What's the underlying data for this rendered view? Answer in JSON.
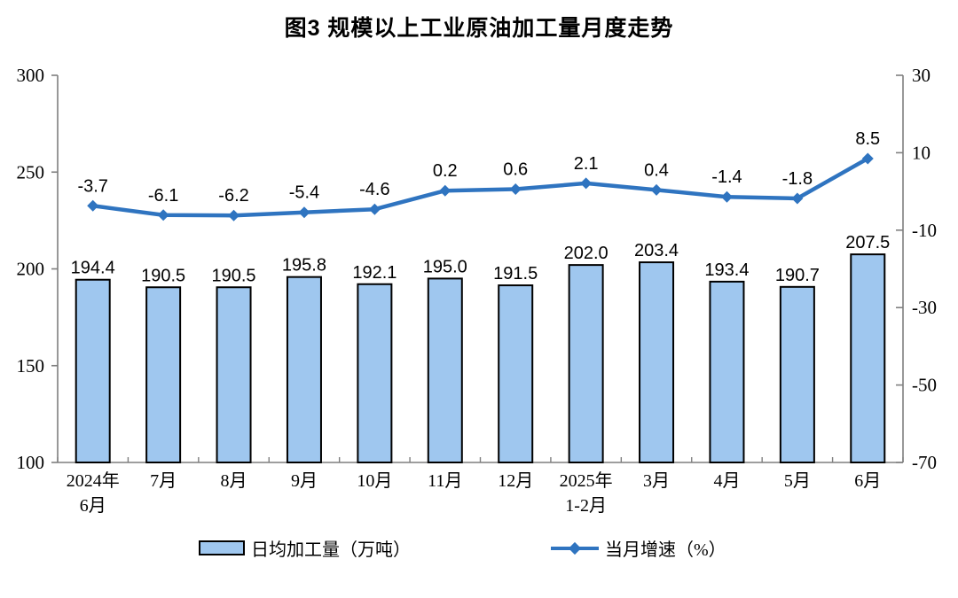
{
  "title": "图3 规模以上工业原油加工量月度走势",
  "chart_data": {
    "type": "combo",
    "title": "图3 规模以上工业原油加工量月度走势",
    "categories": [
      [
        "2024年",
        "6月"
      ],
      [
        "7月"
      ],
      [
        "8月"
      ],
      [
        "9月"
      ],
      [
        "10月"
      ],
      [
        "11月"
      ],
      [
        "12月"
      ],
      [
        "2025年",
        "1-2月"
      ],
      [
        "3月"
      ],
      [
        "4月"
      ],
      [
        "5月"
      ],
      [
        "6月"
      ]
    ],
    "series": [
      {
        "name": "日均加工量（万吨）",
        "type": "bar",
        "axis": "left",
        "values": [
          194.4,
          190.5,
          190.5,
          195.8,
          192.1,
          195.0,
          191.5,
          202.0,
          203.4,
          193.4,
          190.7,
          207.5
        ]
      },
      {
        "name": "当月增速（%）",
        "type": "line",
        "axis": "right",
        "values": [
          -3.7,
          -6.1,
          -6.2,
          -5.4,
          -4.6,
          0.2,
          0.6,
          2.1,
          0.4,
          -1.4,
          -1.8,
          8.5
        ]
      }
    ],
    "left_axis": {
      "min": 100,
      "max": 300,
      "ticks": [
        300,
        250,
        200,
        150,
        100
      ]
    },
    "right_axis": {
      "min": -70,
      "max": 30,
      "ticks": [
        30,
        10,
        -10,
        -30,
        -50,
        -70
      ]
    },
    "grid": false,
    "legend_position": "bottom",
    "colors": {
      "bar_fill": "#9FC7EF",
      "bar_border": "#000000",
      "line": "#2F74C0",
      "axis": "#7F7F7F",
      "text": "#000000",
      "background": "#FFFFFF"
    }
  },
  "legend": {
    "bar_label": "日均加工量（万吨）",
    "line_label": "当月增速（%）"
  }
}
